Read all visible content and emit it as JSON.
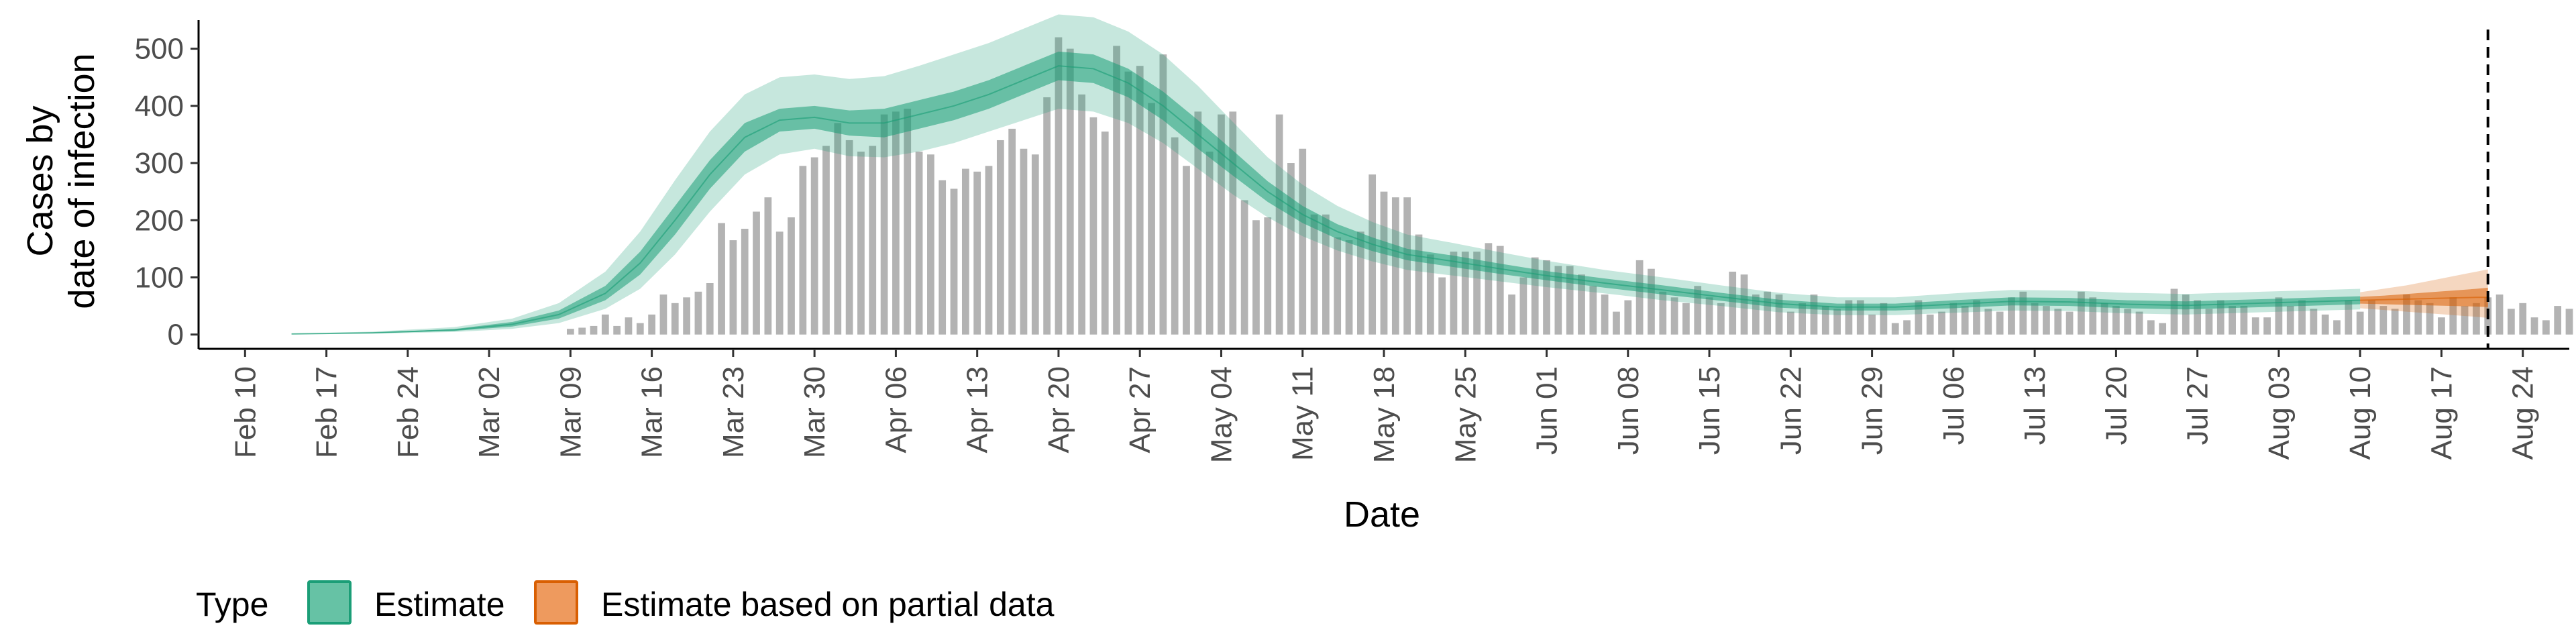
{
  "chart_data": {
    "type": "bar",
    "xlabel": "Date",
    "ylabel_lines": [
      "Cases by",
      "date of infection"
    ],
    "xlim": [
      "2020-02-06",
      "2020-08-28"
    ],
    "ylim": [
      -25,
      550
    ],
    "y_ticks": [
      0,
      100,
      200,
      300,
      400,
      500
    ],
    "grid": false,
    "legend_position": "bottom-left",
    "date_ticks": [
      {
        "date": "2020-02-10",
        "label": "Feb 10"
      },
      {
        "date": "2020-02-17",
        "label": "Feb 17"
      },
      {
        "date": "2020-02-24",
        "label": "Feb 24"
      },
      {
        "date": "2020-03-02",
        "label": "Mar 02"
      },
      {
        "date": "2020-03-09",
        "label": "Mar 09"
      },
      {
        "date": "2020-03-16",
        "label": "Mar 16"
      },
      {
        "date": "2020-03-23",
        "label": "Mar 23"
      },
      {
        "date": "2020-03-30",
        "label": "Mar 30"
      },
      {
        "date": "2020-04-06",
        "label": "Apr 06"
      },
      {
        "date": "2020-04-13",
        "label": "Apr 13"
      },
      {
        "date": "2020-04-20",
        "label": "Apr 20"
      },
      {
        "date": "2020-04-27",
        "label": "Apr 27"
      },
      {
        "date": "2020-05-04",
        "label": "May 04"
      },
      {
        "date": "2020-05-11",
        "label": "May 11"
      },
      {
        "date": "2020-05-18",
        "label": "May 18"
      },
      {
        "date": "2020-05-25",
        "label": "May 25"
      },
      {
        "date": "2020-06-01",
        "label": "Jun 01"
      },
      {
        "date": "2020-06-08",
        "label": "Jun 08"
      },
      {
        "date": "2020-06-15",
        "label": "Jun 15"
      },
      {
        "date": "2020-06-22",
        "label": "Jun 22"
      },
      {
        "date": "2020-06-29",
        "label": "Jun 29"
      },
      {
        "date": "2020-07-06",
        "label": "Jul 06"
      },
      {
        "date": "2020-07-13",
        "label": "Jul 13"
      },
      {
        "date": "2020-07-20",
        "label": "Jul 20"
      },
      {
        "date": "2020-07-27",
        "label": "Jul 27"
      },
      {
        "date": "2020-08-03",
        "label": "Aug 03"
      },
      {
        "date": "2020-08-10",
        "label": "Aug 10"
      },
      {
        "date": "2020-08-17",
        "label": "Aug 17"
      },
      {
        "date": "2020-08-24",
        "label": "Aug 24"
      }
    ],
    "cutoff_date": "2020-08-21",
    "bars": {
      "start_date": "2020-03-09",
      "values": [
        10,
        12,
        15,
        35,
        15,
        30,
        20,
        35,
        70,
        55,
        65,
        75,
        90,
        195,
        165,
        185,
        215,
        240,
        180,
        205,
        295,
        310,
        330,
        370,
        340,
        320,
        330,
        385,
        390,
        395,
        320,
        315,
        270,
        255,
        290,
        285,
        295,
        340,
        360,
        325,
        315,
        415,
        520,
        500,
        420,
        380,
        355,
        505,
        460,
        470,
        405,
        490,
        345,
        295,
        390,
        320,
        385,
        390,
        235,
        200,
        205,
        385,
        300,
        325,
        210,
        210,
        170,
        165,
        180,
        280,
        250,
        240,
        240,
        175,
        140,
        100,
        145,
        145,
        145,
        160,
        155,
        70,
        100,
        135,
        130,
        120,
        120,
        105,
        85,
        70,
        40,
        60,
        130,
        115,
        75,
        65,
        55,
        85,
        65,
        55,
        110,
        105,
        70,
        75,
        70,
        40,
        55,
        70,
        50,
        45,
        60,
        60,
        35,
        55,
        20,
        25,
        60,
        35,
        40,
        55,
        50,
        60,
        45,
        40,
        65,
        75,
        55,
        50,
        45,
        40,
        75,
        65,
        55,
        50,
        45,
        40,
        25,
        20,
        80,
        70,
        60,
        45,
        60,
        50,
        50,
        30,
        30,
        65,
        50,
        60,
        45,
        35,
        25,
        60,
        40,
        60,
        50,
        45,
        70,
        60,
        55,
        30,
        65,
        50,
        55,
        65,
        70,
        45,
        55,
        30,
        25,
        50,
        45,
        40,
        30
      ]
    },
    "series": [
      {
        "name": "Estimate",
        "color": "#1B9E77",
        "dates": [
          "2020-02-14",
          "2020-02-21",
          "2020-02-28",
          "2020-03-04",
          "2020-03-08",
          "2020-03-12",
          "2020-03-15",
          "2020-03-18",
          "2020-03-21",
          "2020-03-24",
          "2020-03-27",
          "2020-03-30",
          "2020-04-02",
          "2020-04-05",
          "2020-04-08",
          "2020-04-11",
          "2020-04-14",
          "2020-04-17",
          "2020-04-20",
          "2020-04-23",
          "2020-04-26",
          "2020-04-29",
          "2020-05-02",
          "2020-05-05",
          "2020-05-08",
          "2020-05-11",
          "2020-05-14",
          "2020-05-17",
          "2020-05-20",
          "2020-05-24",
          "2020-05-28",
          "2020-06-01",
          "2020-06-06",
          "2020-06-11",
          "2020-06-16",
          "2020-06-21",
          "2020-06-26",
          "2020-07-01",
          "2020-07-06",
          "2020-07-11",
          "2020-07-16",
          "2020-07-21",
          "2020-07-26",
          "2020-07-31",
          "2020-08-05",
          "2020-08-10"
        ],
        "median": [
          1,
          3,
          8,
          18,
          35,
          72,
          125,
          200,
          280,
          345,
          375,
          380,
          370,
          370,
          385,
          400,
          420,
          445,
          470,
          465,
          440,
          400,
          350,
          300,
          250,
          210,
          180,
          158,
          140,
          128,
          115,
          103,
          90,
          78,
          66,
          54,
          48,
          48,
          53,
          58,
          57,
          53,
          51,
          54,
          57,
          60
        ],
        "lower50": [
          0.8,
          2.4,
          6.4,
          14,
          28,
          60,
          105,
          175,
          255,
          320,
          355,
          360,
          348,
          345,
          360,
          375,
          395,
          420,
          445,
          440,
          415,
          375,
          325,
          278,
          232,
          195,
          167,
          146,
          130,
          118,
          106,
          95,
          82,
          70,
          59,
          47,
          42,
          42,
          46,
          51,
          50,
          46,
          44,
          47,
          50,
          53
        ],
        "upper50": [
          1.2,
          3.6,
          9.6,
          22,
          42,
          85,
          145,
          225,
          305,
          370,
          395,
          400,
          392,
          395,
          410,
          425,
          445,
          470,
          495,
          490,
          465,
          425,
          375,
          322,
          268,
          225,
          193,
          170,
          150,
          138,
          124,
          111,
          98,
          86,
          73,
          61,
          54,
          54,
          60,
          65,
          64,
          60,
          58,
          61,
          64,
          67
        ],
        "lower90": [
          0.5,
          1.6,
          4.5,
          10,
          20,
          45,
          80,
          140,
          215,
          280,
          315,
          325,
          312,
          310,
          320,
          335,
          355,
          375,
          395,
          390,
          370,
          335,
          290,
          245,
          205,
          172,
          147,
          128,
          113,
          103,
          93,
          83,
          72,
          60,
          50,
          39,
          34,
          34,
          38,
          42,
          41,
          37,
          35,
          38,
          41,
          44
        ],
        "upper90": [
          1.8,
          5,
          13,
          28,
          55,
          110,
          180,
          270,
          355,
          420,
          450,
          455,
          447,
          452,
          470,
          490,
          510,
          535,
          560,
          555,
          530,
          490,
          435,
          372,
          310,
          262,
          225,
          197,
          175,
          160,
          144,
          129,
          113,
          100,
          86,
          73,
          65,
          65,
          72,
          78,
          77,
          73,
          71,
          74,
          77,
          80
        ]
      },
      {
        "name": "Estimate based on partial data",
        "color": "#D95F02",
        "dates": [
          "2020-08-10",
          "2020-08-12",
          "2020-08-14",
          "2020-08-16",
          "2020-08-18",
          "2020-08-20",
          "2020-08-21"
        ],
        "median": [
          60,
          61,
          62,
          63,
          64,
          65,
          65
        ],
        "lower50": [
          54,
          53,
          52,
          51,
          50,
          49,
          48
        ],
        "upper50": [
          66,
          68,
          71,
          74,
          77,
          80,
          82
        ],
        "lower90": [
          46,
          43,
          40,
          37,
          34,
          31,
          29
        ],
        "upper90": [
          74,
          80,
          86,
          94,
          102,
          110,
          114
        ]
      }
    ],
    "legend": {
      "title": "Type",
      "entries": [
        {
          "label": "Estimate",
          "fill": "#66C2A5",
          "border": "#1B9E77"
        },
        {
          "label": "Estimate based on partial data",
          "fill": "#EE9A5E",
          "border": "#D95F02"
        }
      ]
    },
    "bar_color": "#B3B3B3"
  }
}
